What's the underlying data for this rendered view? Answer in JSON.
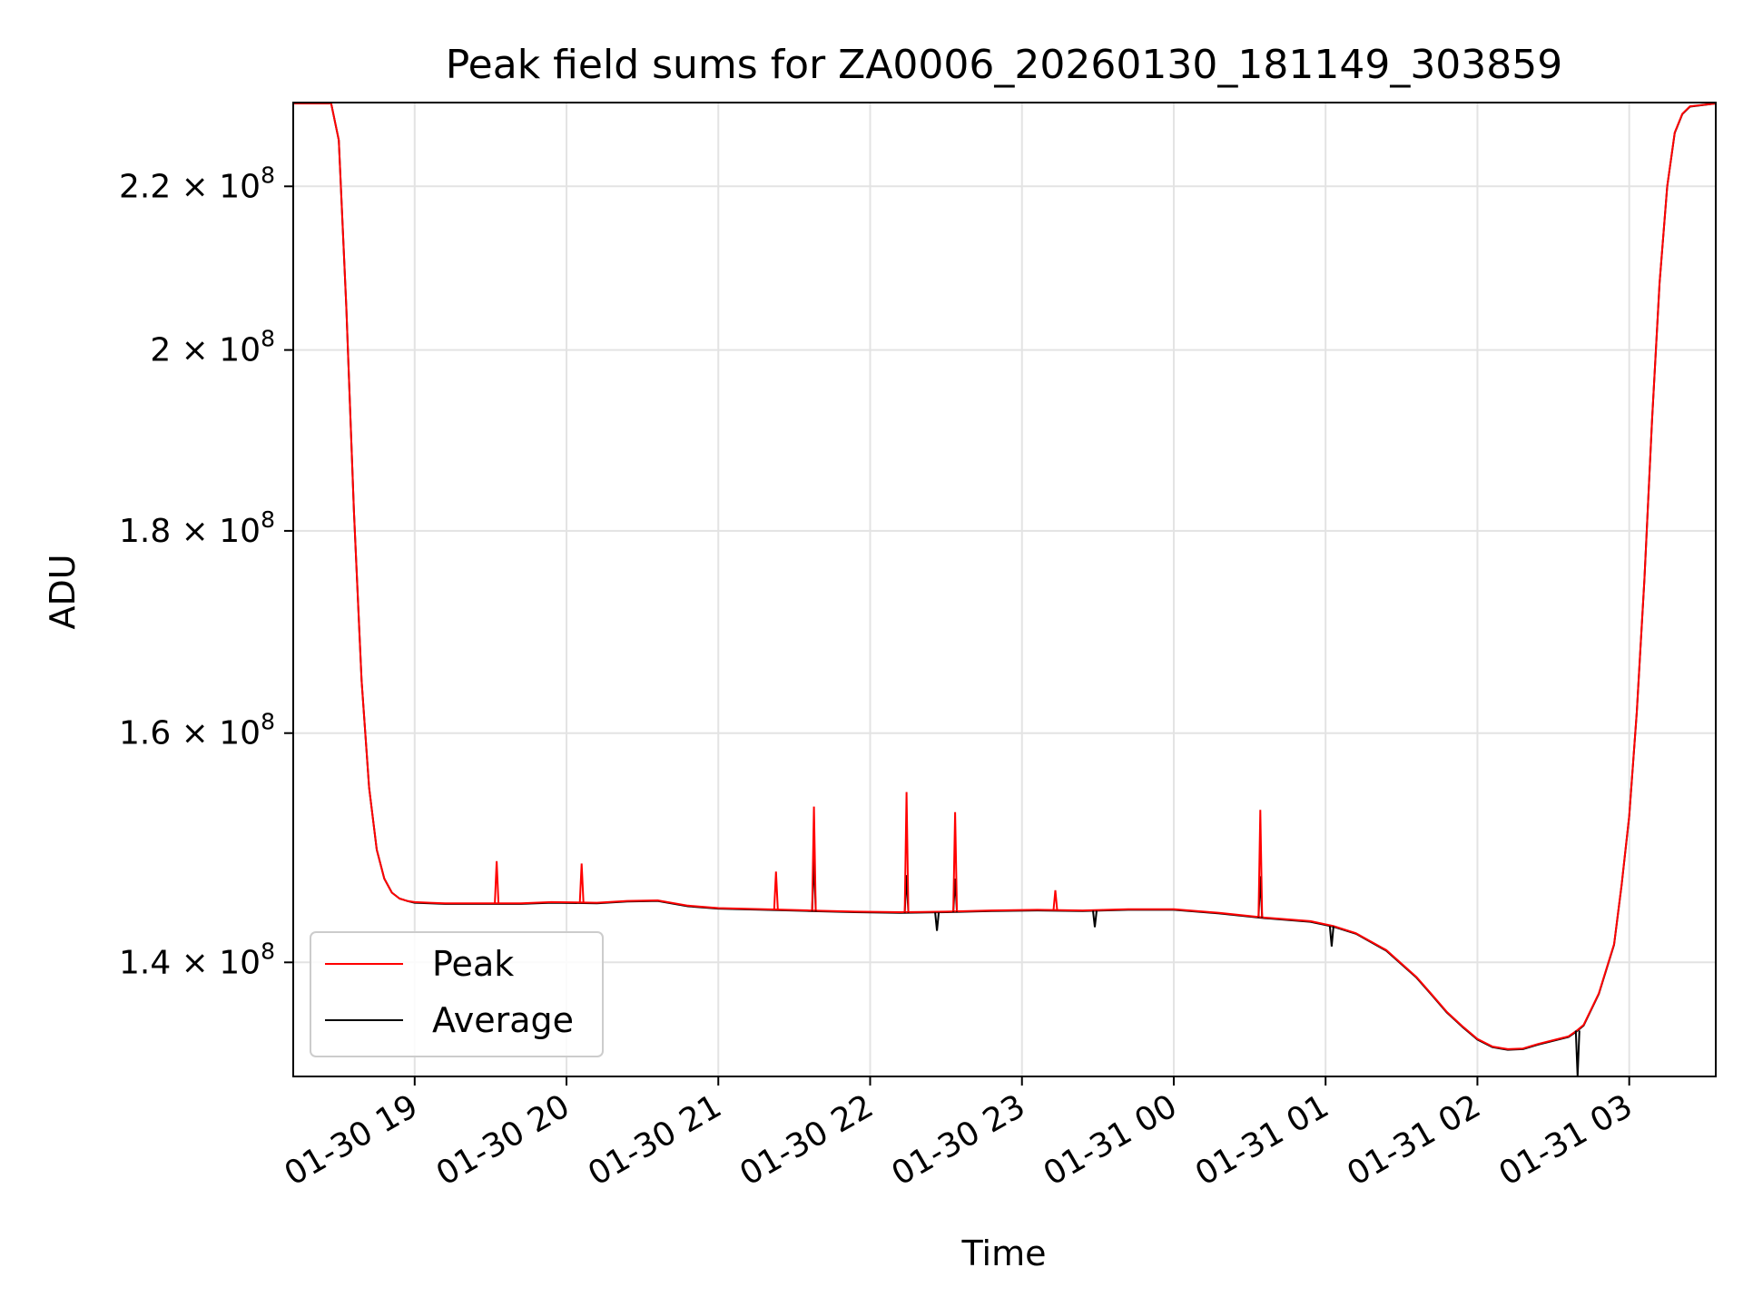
{
  "chart_data": {
    "type": "line",
    "title": "Peak field sums for ZA0006_20260130_181149_303859",
    "xlabel": "Time",
    "ylabel": "ADU",
    "yscale": "log",
    "ylim": [
      131000000,
      231000000
    ],
    "x_unit": "hours since 01-30 18:00",
    "xlim": [
      18.2,
      27.57
    ],
    "x_ticks": [
      {
        "value": 19,
        "label": "01-30 19"
      },
      {
        "value": 20,
        "label": "01-30 20"
      },
      {
        "value": 21,
        "label": "01-30 21"
      },
      {
        "value": 22,
        "label": "01-30 22"
      },
      {
        "value": 23,
        "label": "01-30 23"
      },
      {
        "value": 24,
        "label": "01-31 00"
      },
      {
        "value": 25,
        "label": "01-31 01"
      },
      {
        "value": 26,
        "label": "01-31 02"
      },
      {
        "value": 27,
        "label": "01-31 03"
      }
    ],
    "y_ticks": [
      {
        "value": 140000000,
        "mantissa": "1.4",
        "exp": "8"
      },
      {
        "value": 160000000,
        "mantissa": "1.6",
        "exp": "8"
      },
      {
        "value": 180000000,
        "mantissa": "1.8",
        "exp": "8"
      },
      {
        "value": 200000000,
        "mantissa": "2",
        "exp": "8"
      },
      {
        "value": 220000000,
        "mantissa": "2.2",
        "exp": "8"
      }
    ],
    "times_symbol": "×",
    "tick_base": "10",
    "grid": true,
    "legend_position": "lower-left",
    "series": [
      {
        "name": "Peak",
        "color": "#ff0000",
        "x": [
          18.2,
          18.45,
          18.5,
          18.55,
          18.6,
          18.65,
          18.7,
          18.75,
          18.8,
          18.85,
          18.9,
          18.95,
          19.0,
          19.1,
          19.2,
          19.3,
          19.5,
          19.7,
          19.9,
          20.2,
          20.4,
          20.6,
          20.8,
          21.0,
          21.3,
          21.6,
          21.9,
          22.2,
          22.5,
          22.8,
          23.1,
          23.4,
          23.7,
          24.0,
          24.3,
          24.6,
          24.9,
          25.05,
          25.2,
          25.4,
          25.6,
          25.7,
          25.8,
          25.9,
          26.0,
          26.1,
          26.2,
          26.3,
          26.4,
          26.6,
          26.65,
          26.7,
          26.8,
          26.9,
          26.95,
          27.0,
          27.05,
          27.1,
          27.15,
          27.2,
          27.25,
          27.3,
          27.35,
          27.4,
          27.57
        ],
        "y": [
          231000000,
          231000000,
          226000000,
          205000000,
          182000000,
          165000000,
          155000000,
          149500000,
          147000000,
          145800000,
          145300000,
          145100000,
          145000000,
          144950000,
          144900000,
          144900000,
          144900000,
          144900000,
          145000000,
          144950000,
          145100000,
          145150000,
          144700000,
          144500000,
          144400000,
          144300000,
          144200000,
          144150000,
          144200000,
          144300000,
          144350000,
          144300000,
          144400000,
          144400000,
          144100000,
          143700000,
          143400000,
          143000000,
          142400000,
          141000000,
          138800000,
          137400000,
          136000000,
          134900000,
          133900000,
          133300000,
          133100000,
          133150000,
          133500000,
          134100000,
          134500000,
          135000000,
          137500000,
          141500000,
          146500000,
          152500000,
          162000000,
          175000000,
          192000000,
          208000000,
          220000000,
          227000000,
          229500000,
          230500000,
          231000000
        ]
      },
      {
        "name": "Average",
        "color": "#000000",
        "x": [
          18.2,
          18.45,
          18.5,
          18.55,
          18.6,
          18.65,
          18.7,
          18.75,
          18.8,
          18.85,
          18.9,
          18.95,
          19.0,
          19.1,
          19.2,
          19.3,
          19.5,
          19.7,
          19.9,
          20.2,
          20.4,
          20.6,
          20.8,
          21.0,
          21.3,
          21.6,
          21.9,
          22.2,
          22.5,
          22.8,
          23.1,
          23.4,
          23.7,
          24.0,
          24.3,
          24.6,
          24.9,
          25.05,
          25.2,
          25.4,
          25.6,
          25.7,
          25.8,
          25.9,
          26.0,
          26.1,
          26.2,
          26.3,
          26.4,
          26.6,
          26.65,
          26.7,
          26.8,
          26.9,
          26.95,
          27.0,
          27.05,
          27.1,
          27.15,
          27.2,
          27.25,
          27.3,
          27.35,
          27.4,
          27.57
        ],
        "y": [
          231000000,
          231000000,
          226000000,
          205000000,
          182000000,
          165000000,
          155000000,
          149500000,
          147000000,
          145800000,
          145300000,
          145100000,
          144950000,
          144900000,
          144850000,
          144850000,
          144850000,
          144850000,
          144950000,
          144900000,
          145050000,
          145100000,
          144650000,
          144450000,
          144350000,
          144250000,
          144150000,
          144100000,
          144150000,
          144250000,
          144300000,
          144250000,
          144350000,
          144350000,
          144050000,
          143650000,
          143350000,
          142950000,
          142350000,
          140950000,
          138750000,
          137350000,
          135950000,
          134850000,
          133850000,
          133250000,
          133050000,
          133100000,
          133450000,
          134050000,
          134450000,
          134950000,
          137450000,
          141450000,
          146450000,
          152450000,
          161950000,
          174950000,
          191950000,
          207950000,
          219950000,
          226950000,
          229450000,
          230450000,
          231000000
        ]
      }
    ],
    "spikes": [
      {
        "series": "Peak",
        "x": 19.54,
        "to": 148500000
      },
      {
        "series": "Peak",
        "x": 20.1,
        "to": 148300000
      },
      {
        "series": "Peak",
        "x": 21.38,
        "to": 147600000
      },
      {
        "series": "Peak",
        "x": 21.63,
        "to": 153300000
      },
      {
        "series": "Peak",
        "x": 22.24,
        "to": 154600000
      },
      {
        "series": "Peak",
        "x": 22.56,
        "to": 152800000
      },
      {
        "series": "Peak",
        "x": 23.22,
        "to": 146000000
      },
      {
        "series": "Peak",
        "x": 24.57,
        "to": 153000000
      },
      {
        "series": "Average",
        "x": 21.63,
        "to": 148800000
      },
      {
        "series": "Average",
        "x": 22.24,
        "to": 147300000
      },
      {
        "series": "Average",
        "x": 22.56,
        "to": 147000000
      },
      {
        "series": "Average",
        "x": 24.57,
        "to": 147200000
      },
      {
        "series": "Average",
        "x": 22.44,
        "to": 142600000
      },
      {
        "series": "Average",
        "x": 23.48,
        "to": 142900000
      },
      {
        "series": "Average",
        "x": 25.04,
        "to": 141300000
      },
      {
        "series": "Average",
        "x": 26.66,
        "to": 131000000
      }
    ]
  }
}
